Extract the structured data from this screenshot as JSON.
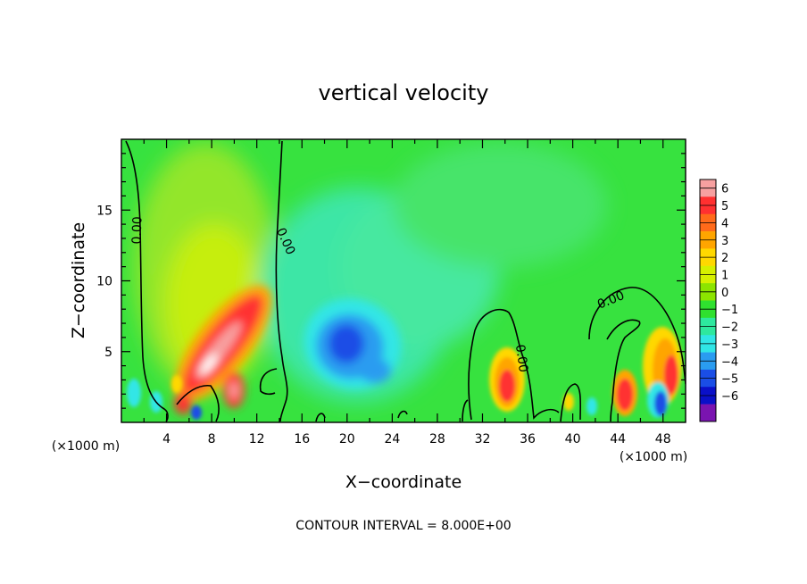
{
  "chart_data": {
    "type": "heatmap",
    "title": "vertical velocity",
    "xlabel": "X−coordinate",
    "ylabel": "Z−coordinate",
    "x_unit_left": "(×1000 m)",
    "x_unit_right": "(×1000 m)",
    "xlim": [
      0,
      50
    ],
    "ylim": [
      0,
      20
    ],
    "x_ticks": [
      4,
      8,
      12,
      16,
      20,
      24,
      28,
      32,
      36,
      40,
      44,
      48
    ],
    "y_ticks": [
      5,
      10,
      15
    ],
    "footer": "CONTOUR INTERVAL = 8.000E+00",
    "contour_label": "0.00",
    "colorbar": {
      "levels": [
        "6",
        "5",
        "4",
        "3",
        "2",
        "1",
        "0",
        "−1",
        "−2",
        "−3",
        "−4",
        "−5",
        "−6"
      ],
      "colors": [
        "#f7a0a0",
        "#ff3030",
        "#ff6a1a",
        "#ffa500",
        "#ffd800",
        "#d6f000",
        "#8ce400",
        "#2fe02f",
        "#2ee89e",
        "#30e6e6",
        "#2a9cf0",
        "#1a4ee6",
        "#0a10c8",
        "#7a14b0"
      ]
    },
    "features": [
      {
        "kind": "updraft",
        "x": 8.5,
        "z": 6.5,
        "peak": 6
      },
      {
        "kind": "updraft",
        "x": 10,
        "z": 2.5,
        "peak": 5
      },
      {
        "kind": "updraft",
        "x": 34,
        "z": 2.5,
        "peak": 4
      },
      {
        "kind": "updraft",
        "x": 45,
        "z": 3.5,
        "peak": 4
      },
      {
        "kind": "updraft",
        "x": 48.5,
        "z": 3,
        "peak": 4
      },
      {
        "kind": "downdraft",
        "x": 19.5,
        "z": 5.5,
        "peak": -4
      },
      {
        "kind": "downdraft",
        "x": 6.5,
        "z": 0.8,
        "peak": -4
      },
      {
        "kind": "downdraft",
        "x": 47,
        "z": 1.5,
        "peak": -4
      }
    ]
  }
}
